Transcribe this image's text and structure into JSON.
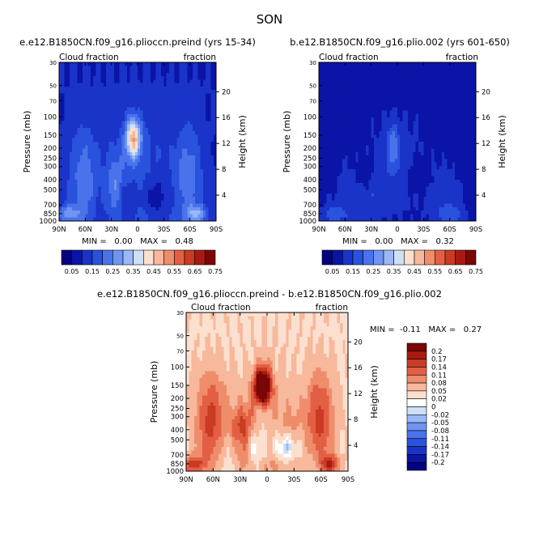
{
  "season": "SON",
  "chart_data": [
    {
      "type": "heatmap",
      "title": "e.e12.B1850CN.f09_g16.plioccn.preind (yrs 15-34)",
      "left_label": "Cloud fraction",
      "right_label": "fraction",
      "xlabel": "",
      "ylabel": "Pressure (mb)",
      "y2label": "Height (km)",
      "x_ticks": [
        "90N",
        "60N",
        "30N",
        "0",
        "30S",
        "60S",
        "90S"
      ],
      "y_ticks": [
        "30",
        "50",
        "70",
        "100",
        "150",
        "200",
        "250",
        "300",
        "400",
        "500",
        "700",
        "850",
        "1000"
      ],
      "y_tick_values": [
        30,
        50,
        70,
        100,
        150,
        200,
        250,
        300,
        400,
        500,
        700,
        850,
        1000
      ],
      "y2_ticks": [
        "20",
        "16",
        "12",
        "8",
        "4"
      ],
      "y2_tick_values": [
        20,
        16,
        12,
        8,
        4
      ],
      "xlim": [
        90,
        -90
      ],
      "ylim": [
        1000,
        30
      ],
      "y_scale": "log",
      "stats": "MIN =   0.00   MAX =   0.48",
      "colorbar": {
        "orientation": "horizontal",
        "labels": [
          "0.05",
          "0.15",
          "0.25",
          "0.35",
          "0.45",
          "0.55",
          "0.65",
          "0.75"
        ],
        "levels": [
          0.05,
          0.1,
          0.15,
          0.2,
          0.25,
          0.3,
          0.35,
          0.4,
          0.45,
          0.5,
          0.55,
          0.6,
          0.65,
          0.7,
          0.75
        ]
      }
    },
    {
      "type": "heatmap",
      "title": "b.e12.B1850CN.f09_g16.plio.002 (yrs 601-650)",
      "left_label": "Cloud fraction",
      "right_label": "fraction",
      "xlabel": "",
      "ylabel": "Pressure (mb)",
      "y2label": "Height (km)",
      "x_ticks": [
        "90N",
        "60N",
        "30N",
        "0",
        "30S",
        "60S",
        "90S"
      ],
      "y_ticks": [
        "30",
        "50",
        "70",
        "100",
        "150",
        "200",
        "250",
        "300",
        "400",
        "500",
        "700",
        "850",
        "1000"
      ],
      "y_tick_values": [
        30,
        50,
        70,
        100,
        150,
        200,
        250,
        300,
        400,
        500,
        700,
        850,
        1000
      ],
      "y2_ticks": [
        "20",
        "16",
        "12",
        "8",
        "4"
      ],
      "y2_tick_values": [
        20,
        16,
        12,
        8,
        4
      ],
      "xlim": [
        90,
        -90
      ],
      "ylim": [
        1000,
        30
      ],
      "y_scale": "log",
      "stats": "MIN =   0.00   MAX =   0.32",
      "colorbar": {
        "orientation": "horizontal",
        "labels": [
          "0.05",
          "0.15",
          "0.25",
          "0.35",
          "0.45",
          "0.55",
          "0.65",
          "0.75"
        ],
        "levels": [
          0.05,
          0.1,
          0.15,
          0.2,
          0.25,
          0.3,
          0.35,
          0.4,
          0.45,
          0.5,
          0.55,
          0.6,
          0.65,
          0.7,
          0.75
        ]
      }
    },
    {
      "type": "heatmap",
      "title": "e.e12.B1850CN.f09_g16.plioccn.preind - b.e12.B1850CN.f09_g16.plio.002",
      "left_label": "Cloud fraction",
      "right_label": "fraction",
      "xlabel": "",
      "ylabel": "Pressure (mb)",
      "y2label": "Height (km)",
      "x_ticks": [
        "90N",
        "60N",
        "30N",
        "0",
        "30S",
        "60S",
        "90S"
      ],
      "y_ticks": [
        "30",
        "50",
        "70",
        "100",
        "150",
        "200",
        "250",
        "300",
        "400",
        "500",
        "700",
        "850",
        "1000"
      ],
      "y_tick_values": [
        30,
        50,
        70,
        100,
        150,
        200,
        250,
        300,
        400,
        500,
        700,
        850,
        1000
      ],
      "y2_ticks": [
        "20",
        "16",
        "12",
        "8",
        "4"
      ],
      "y2_tick_values": [
        20,
        16,
        12,
        8,
        4
      ],
      "xlim": [
        90,
        -90
      ],
      "ylim": [
        1000,
        30
      ],
      "y_scale": "log",
      "stats": "MIN =  -0.11   MAX =   0.27",
      "colorbar": {
        "orientation": "vertical",
        "labels": [
          "0.2",
          "0.17",
          "0.14",
          "0.11",
          "0.08",
          "0.05",
          "0.02",
          "0",
          "-0.02",
          "-0.05",
          "-0.08",
          "-0.11",
          "-0.14",
          "-0.17",
          "-0.2"
        ],
        "levels": [
          0.2,
          0.17,
          0.14,
          0.11,
          0.08,
          0.05,
          0.02,
          0,
          -0.02,
          -0.05,
          -0.08,
          -0.11,
          -0.14,
          -0.17,
          -0.2
        ]
      }
    }
  ],
  "colors": {
    "seq": [
      "#030380",
      "#0a14a6",
      "#1a33c8",
      "#2952dd",
      "#4a72ea",
      "#6f94f2",
      "#9ab8f7",
      "#cde0f7",
      "#fbe0cf",
      "#f7b89b",
      "#ef8d6b",
      "#e35f44",
      "#c93b23",
      "#a81a10",
      "#7a0606"
    ],
    "div": [
      "#7a0606",
      "#a81a10",
      "#c93b23",
      "#e35f44",
      "#ef8d6b",
      "#f7b89b",
      "#fbe0cf",
      "#ffffff",
      "#cde0f7",
      "#9ab8f7",
      "#6f94f2",
      "#4a72ea",
      "#2952dd",
      "#1a33c8",
      "#0a14a6",
      "#030380"
    ]
  }
}
